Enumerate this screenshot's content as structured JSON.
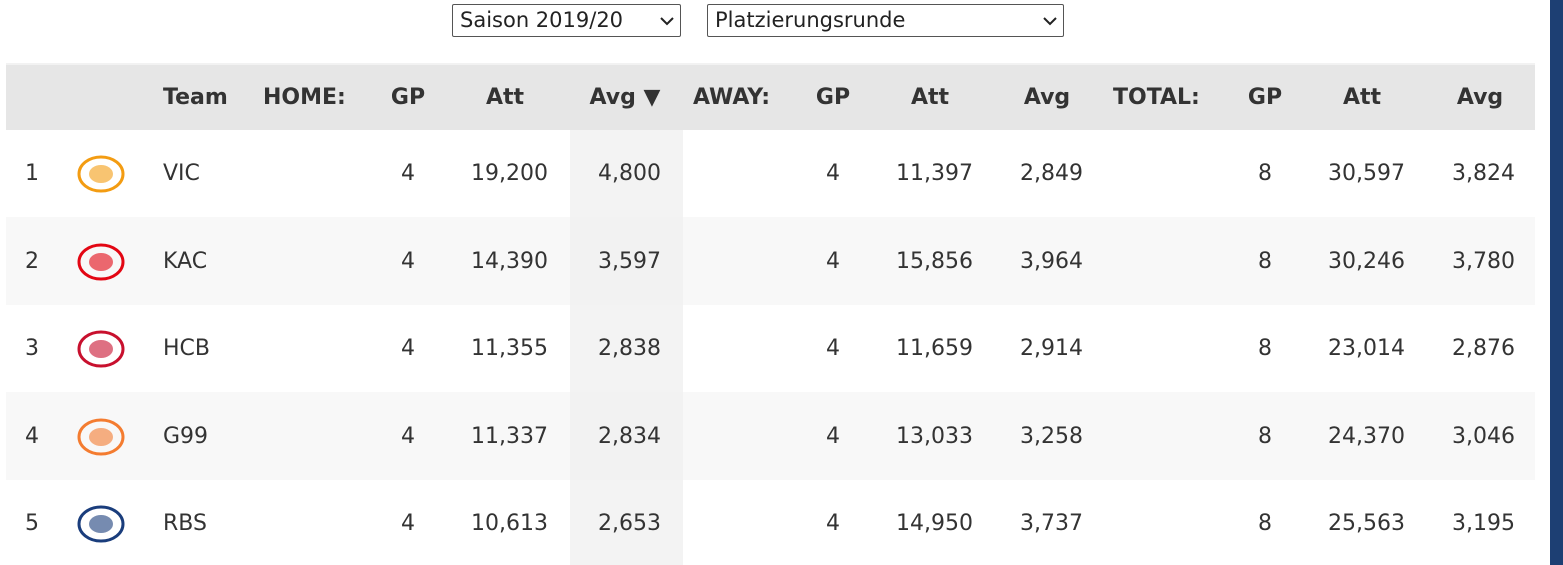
{
  "filters": {
    "season": "Saison 2019/20",
    "round": "Platzierungsrunde"
  },
  "table": {
    "headers": [
      "Team",
      "HOME:",
      "GP",
      "Att",
      "Avg ▼",
      "AWAY:",
      "GP",
      "Att",
      "Avg",
      "TOTAL:",
      "GP",
      "Att",
      "Avg"
    ],
    "rows": [
      [
        "1",
        "VIC",
        "4",
        "19,200",
        "4,800",
        "4",
        "11,397",
        "2,849",
        "8",
        "30,597",
        "3,824"
      ],
      [
        "2",
        "KAC",
        "4",
        "14,390",
        "3,597",
        "4",
        "15,856",
        "3,964",
        "8",
        "30,246",
        "3,780"
      ],
      [
        "3",
        "HCB",
        "4",
        "11,355",
        "2,838",
        "4",
        "11,659",
        "2,914",
        "8",
        "23,014",
        "2,876"
      ],
      [
        "4",
        "G99",
        "4",
        "11,337",
        "2,834",
        "4",
        "13,033",
        "3,258",
        "8",
        "24,370",
        "3,046"
      ],
      [
        "5",
        "RBS",
        "4",
        "10,613",
        "2,653",
        "4",
        "14,950",
        "3,737",
        "8",
        "25,563",
        "3,195"
      ]
    ]
  }
}
